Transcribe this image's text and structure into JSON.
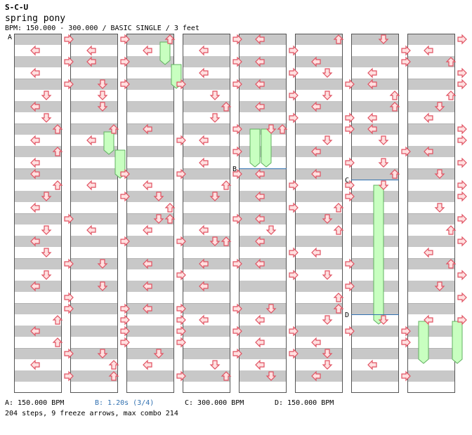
{
  "header": {
    "title": "S-C-U",
    "song": "spring pony",
    "meta": "BPM: 150.000 - 300.000 / BASIC SINGLE / 3 feet"
  },
  "markers": {
    "a": "A",
    "b": "B",
    "c": "C",
    "d": "D"
  },
  "legend": {
    "a": "A: 150.000 BPM",
    "b": "B: 1.20s (3/4)",
    "c": "C: 300.000 BPM",
    "d": "D: 150.000 BPM"
  },
  "stats": "204 steps, 9 freeze arrows, max combo 214",
  "colors": {
    "stripe": "#c8c8c8",
    "arrow_fill": "#ffe0e0",
    "arrow_stroke": "#e05060",
    "freeze_fill": "#c8ffc0",
    "freeze_stroke": "#60b060",
    "marker_line": "#3070b0",
    "legend_b": "#3070b0"
  }
}
